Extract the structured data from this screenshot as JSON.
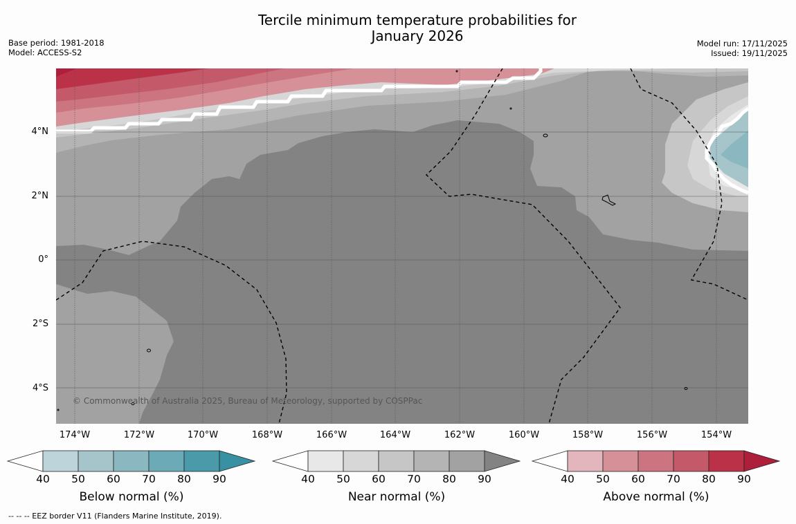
{
  "title": {
    "line1": "Tercile minimum temperature probabilities for",
    "line2": "January 2026"
  },
  "meta": {
    "base_period": "Base period: 1981-2018",
    "model": "Model: ACCESS-S2",
    "model_run": "Model run: 17/11/2025",
    "issued": "Issued: 19/11/2025"
  },
  "map": {
    "lat_labels": [
      "4°N",
      "2°N",
      "0°",
      "2°S",
      "4°S"
    ],
    "lon_labels": [
      "174°W",
      "172°W",
      "170°W",
      "168°W",
      "166°W",
      "164°W",
      "162°W",
      "160°W",
      "158°W",
      "156°W",
      "154°W"
    ],
    "copyright": "© Commonwealth of Australia 2025, Bureau of Meteorology, supported by COSPPac"
  },
  "colorbars": [
    {
      "title": "Below normal (%)",
      "ticks": [
        "40",
        "50",
        "60",
        "70",
        "80",
        "90"
      ],
      "colors": [
        "#ffffff",
        "#bcd4da",
        "#a5c5ca",
        "#8ab7c0",
        "#6daab8",
        "#4b9aa9",
        "#3890a3"
      ]
    },
    {
      "title": "Near normal (%)",
      "ticks": [
        "40",
        "50",
        "60",
        "70",
        "80",
        "90"
      ],
      "colors": [
        "#ffffff",
        "#e8e8e8",
        "#d7d7d7",
        "#c6c6c6",
        "#b4b4b4",
        "#a2a2a2",
        "#838383"
      ]
    },
    {
      "title": "Above normal (%)",
      "ticks": [
        "40",
        "50",
        "60",
        "70",
        "80",
        "90"
      ],
      "colors": [
        "#ffffff",
        "#e2b6bc",
        "#d69198",
        "#cc7580",
        "#c45a69",
        "#bb3248",
        "#ad1f3b"
      ]
    }
  ],
  "footnote": "--  --  -- EEZ border V11 (Flanders Marine Institute, 2019)."
}
